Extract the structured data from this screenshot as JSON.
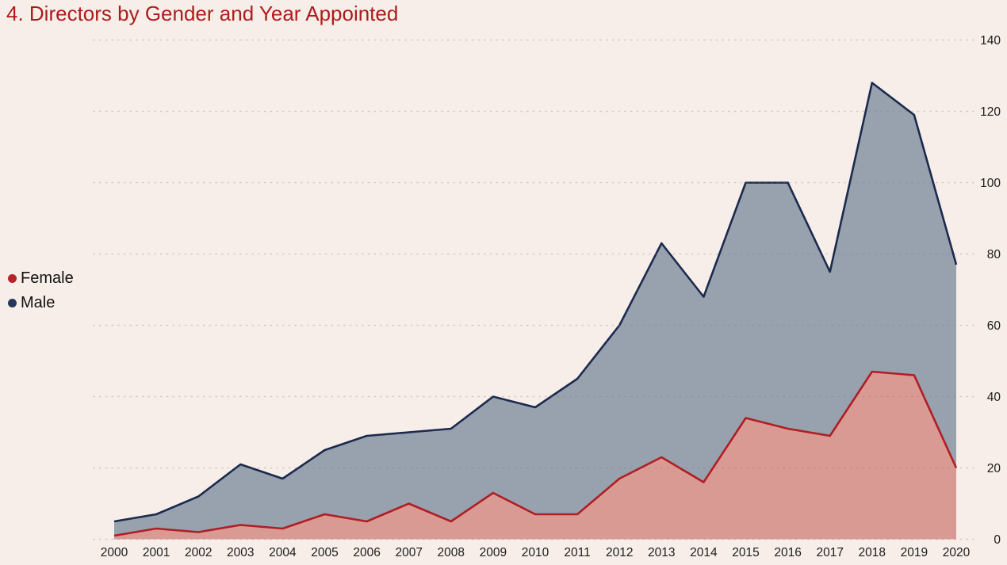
{
  "title": "4. Directors by Gender and Year Appointed",
  "legend": {
    "items": [
      {
        "label": "Female",
        "color": "#b3242b"
      },
      {
        "label": "Male",
        "color": "#24365a"
      }
    ]
  },
  "colors": {
    "background": "#f7eee9",
    "title": "#ad1c1a",
    "female_line": "#b01e23",
    "female_fill": "#d99a94",
    "male_line": "#1b2a4d",
    "male_fill": "#98a1ae",
    "grid": "#8a7a70",
    "axis_text": "#1c1c1c"
  },
  "chart_data": {
    "type": "area",
    "stacked": true,
    "title": "4. Directors by Gender and Year Appointed",
    "categories": [
      2000,
      2001,
      2002,
      2003,
      2004,
      2005,
      2006,
      2007,
      2008,
      2009,
      2010,
      2011,
      2012,
      2013,
      2014,
      2015,
      2016,
      2017,
      2018,
      2019,
      2020
    ],
    "series": [
      {
        "name": "Female",
        "values": [
          1,
          3,
          2,
          4,
          3,
          7,
          5,
          10,
          5,
          13,
          7,
          7,
          17,
          23,
          16,
          34,
          31,
          29,
          47,
          46,
          20
        ]
      },
      {
        "name": "Male",
        "values": [
          4,
          4,
          10,
          17,
          14,
          18,
          24,
          20,
          26,
          27,
          30,
          38,
          43,
          60,
          52,
          66,
          69,
          46,
          81,
          73,
          57
        ]
      }
    ],
    "stacked_totals": [
      5,
      7,
      12,
      21,
      17,
      25,
      29,
      30,
      31,
      40,
      37,
      45,
      60,
      83,
      68,
      100,
      100,
      75,
      128,
      119,
      77
    ],
    "xlabel": "",
    "ylabel": "",
    "ylim": [
      0,
      140
    ],
    "yticks": [
      0,
      20,
      40,
      60,
      80,
      100,
      120,
      140
    ],
    "grid": "horizontal-dotted",
    "legend_position": "left",
    "y_axis_side": "right"
  }
}
